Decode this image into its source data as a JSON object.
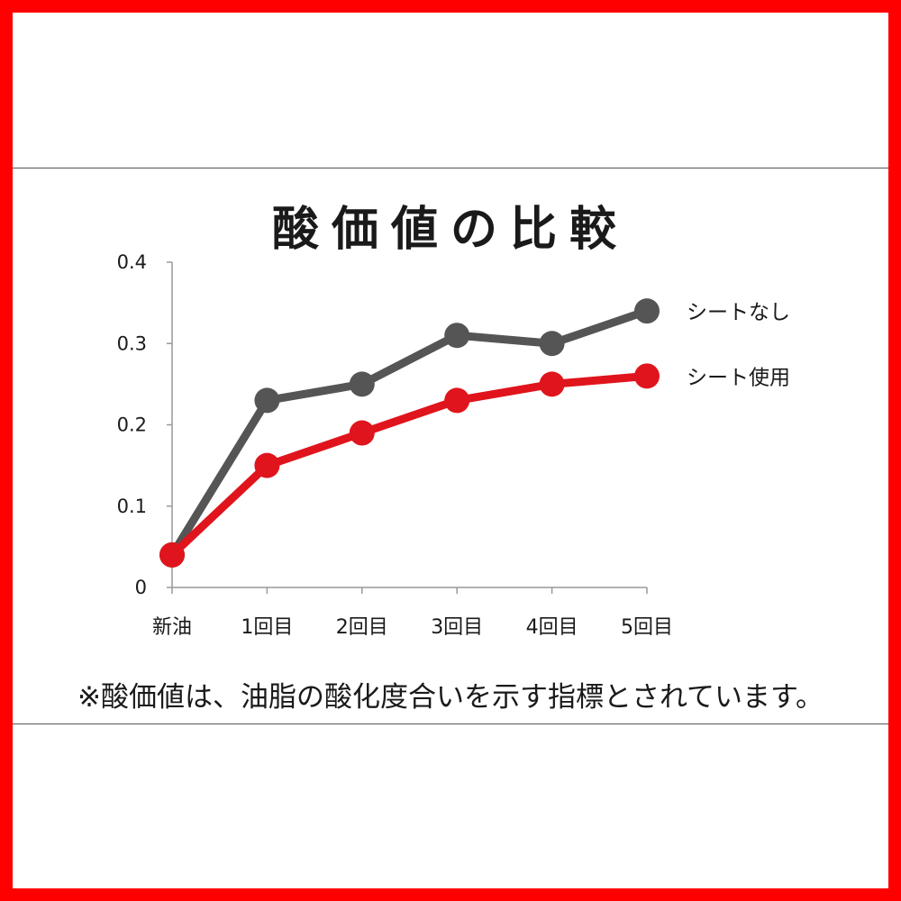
{
  "chart_data": {
    "type": "line",
    "title": "酸価値の比較",
    "categories": [
      "新油",
      "1回目",
      "2回目",
      "3回目",
      "4回目",
      "5回目"
    ],
    "ylim": [
      0,
      0.4
    ],
    "yticks": [
      "0",
      "0.1",
      "0.2",
      "0.3",
      "0.4"
    ],
    "grid": false,
    "legend_position": "right",
    "series": [
      {
        "name": "シートなし",
        "color": "#555555",
        "values": [
          0.04,
          0.23,
          0.25,
          0.31,
          0.3,
          0.34
        ]
      },
      {
        "name": "シート使用",
        "color": "#e0141c",
        "values": [
          0.04,
          0.15,
          0.19,
          0.23,
          0.25,
          0.26
        ]
      }
    ]
  },
  "note": "※酸価値は、油脂の酸化度合いを示す指標とされています。",
  "colors": {
    "frame": "#ff0000",
    "axis": "#999999",
    "text": "#1a1a1a"
  }
}
